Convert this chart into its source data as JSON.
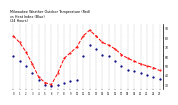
{
  "title": "Milwaukee Weather Outdoor Temperature (Red)\nvs Heat Index (Blue)\n(24 Hours)",
  "x_values": [
    0,
    1,
    2,
    3,
    4,
    5,
    6,
    7,
    8,
    9,
    10,
    11,
    12,
    13,
    14,
    15,
    16,
    17,
    18,
    19,
    20,
    21,
    22,
    23
  ],
  "temp_red": [
    82,
    75,
    65,
    52,
    38,
    32,
    30,
    42,
    58,
    64,
    70,
    82,
    88,
    82,
    75,
    72,
    68,
    62,
    58,
    55,
    52,
    50,
    48,
    45
  ],
  "heat_blue": [
    60,
    55,
    50,
    42,
    35,
    30,
    28,
    30,
    32,
    34,
    35,
    60,
    72,
    68,
    62,
    60,
    55,
    50,
    46,
    44,
    42,
    40,
    38,
    36
  ],
  "ylim": [
    25,
    95
  ],
  "ytick_vals": [
    30,
    40,
    50,
    60,
    70,
    80,
    90
  ],
  "ytick_labels": [
    "30",
    "40",
    "50",
    "60",
    "70",
    "80",
    "90"
  ],
  "red_color": "#ff0000",
  "blue_color": "#000080",
  "bg_color": "#ffffff",
  "grid_color": "#888888"
}
